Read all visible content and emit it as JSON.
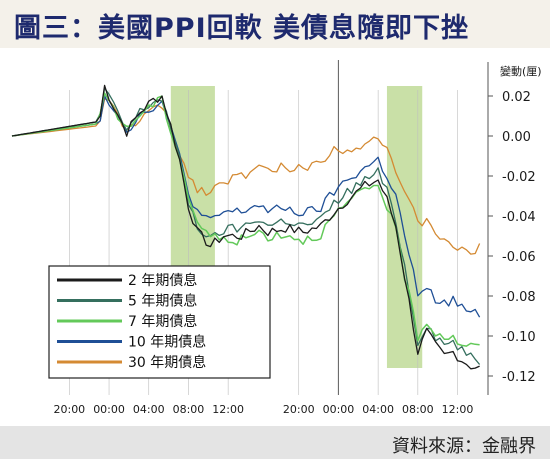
{
  "title": "圖三：美國PPI回軟  美債息隨即下挫",
  "source": "資料來源：金融界",
  "chart_data": {
    "type": "line",
    "ylabel": "變動(厘)",
    "ylim": [
      -0.125,
      0.03
    ],
    "y_ticks": [
      0.02,
      0.0,
      -0.02,
      -0.04,
      -0.06,
      -0.08,
      -0.1,
      -0.12
    ],
    "y_tick_labels": [
      "0.02",
      "0.00",
      "-0.02",
      "-0.04",
      "-0.06",
      "-0.08",
      "-0.10",
      "-0.12"
    ],
    "x_ticks": [
      {
        "label": "20:00",
        "i": 13
      },
      {
        "label": "00:00",
        "i": 22
      },
      {
        "label": "04:00",
        "i": 31
      },
      {
        "label": "08:00",
        "i": 40
      },
      {
        "label": "12:00",
        "i": 49
      },
      {
        "label": "20:00",
        "i": 65
      },
      {
        "label": "00:00",
        "i": 74
      },
      {
        "label": "04:00",
        "i": 83
      },
      {
        "label": "08:00",
        "i": 92
      },
      {
        "label": "12:00",
        "i": 101
      }
    ],
    "x_count": 108,
    "session_divider": 74,
    "highlights": [
      [
        36,
        46
      ],
      [
        85,
        93
      ]
    ],
    "highlight_color": "#b7d68a",
    "series": [
      {
        "name": "2 年期債息",
        "color": "#1b1b1b",
        "width": 1.3,
        "knots": [
          [
            0,
            0
          ],
          [
            19,
            0.007
          ],
          [
            20,
            0.01
          ],
          [
            21,
            0.025
          ],
          [
            23,
            0.015
          ],
          [
            26,
            0.002
          ],
          [
            29,
            0.012
          ],
          [
            32,
            0.018
          ],
          [
            34,
            0.02
          ],
          [
            36,
            0.005
          ],
          [
            38,
            -0.012
          ],
          [
            40,
            -0.035
          ],
          [
            42,
            -0.048
          ],
          [
            45,
            -0.055
          ],
          [
            48,
            -0.05
          ],
          [
            52,
            -0.05
          ],
          [
            56,
            -0.045
          ],
          [
            58,
            -0.048
          ],
          [
            62,
            -0.046
          ],
          [
            66,
            -0.048
          ],
          [
            70,
            -0.045
          ],
          [
            73,
            -0.038
          ],
          [
            76,
            -0.032
          ],
          [
            80,
            -0.025
          ],
          [
            83,
            -0.022
          ],
          [
            85,
            -0.032
          ],
          [
            87,
            -0.045
          ],
          [
            89,
            -0.07
          ],
          [
            91,
            -0.095
          ],
          [
            92,
            -0.108
          ],
          [
            94,
            -0.098
          ],
          [
            96,
            -0.105
          ],
          [
            98,
            -0.11
          ],
          [
            100,
            -0.108
          ],
          [
            102,
            -0.112
          ],
          [
            104,
            -0.115
          ],
          [
            106,
            -0.116
          ]
        ]
      },
      {
        "name": "5 年期債息",
        "color": "#356f5e",
        "width": 1.3,
        "knots": [
          [
            0,
            0
          ],
          [
            19,
            0.007
          ],
          [
            20,
            0.01
          ],
          [
            21,
            0.024
          ],
          [
            23,
            0.015
          ],
          [
            26,
            0.003
          ],
          [
            29,
            0.012
          ],
          [
            32,
            0.017
          ],
          [
            34,
            0.019
          ],
          [
            36,
            0.004
          ],
          [
            38,
            -0.012
          ],
          [
            40,
            -0.033
          ],
          [
            42,
            -0.045
          ],
          [
            45,
            -0.052
          ],
          [
            48,
            -0.047
          ],
          [
            52,
            -0.046
          ],
          [
            56,
            -0.041
          ],
          [
            58,
            -0.045
          ],
          [
            62,
            -0.042
          ],
          [
            66,
            -0.045
          ],
          [
            70,
            -0.042
          ],
          [
            73,
            -0.034
          ],
          [
            76,
            -0.028
          ],
          [
            80,
            -0.022
          ],
          [
            83,
            -0.018
          ],
          [
            85,
            -0.028
          ],
          [
            87,
            -0.042
          ],
          [
            89,
            -0.065
          ],
          [
            91,
            -0.09
          ],
          [
            92,
            -0.103
          ],
          [
            94,
            -0.094
          ],
          [
            96,
            -0.1
          ],
          [
            98,
            -0.104
          ],
          [
            100,
            -0.103
          ],
          [
            102,
            -0.107
          ],
          [
            104,
            -0.111
          ],
          [
            106,
            -0.113
          ]
        ]
      },
      {
        "name": "7 年期債息",
        "color": "#63c95a",
        "width": 1.5,
        "knots": [
          [
            0,
            0
          ],
          [
            19,
            0.006
          ],
          [
            20,
            0.009
          ],
          [
            21,
            0.022
          ],
          [
            23,
            0.014
          ],
          [
            26,
            0.003
          ],
          [
            29,
            0.011
          ],
          [
            32,
            0.016
          ],
          [
            34,
            0.018
          ],
          [
            36,
            0.003
          ],
          [
            38,
            -0.011
          ],
          [
            40,
            -0.03
          ],
          [
            42,
            -0.043
          ],
          [
            45,
            -0.05
          ],
          [
            48,
            -0.052
          ],
          [
            52,
            -0.052
          ],
          [
            56,
            -0.048
          ],
          [
            58,
            -0.05
          ],
          [
            62,
            -0.049
          ],
          [
            66,
            -0.052
          ],
          [
            70,
            -0.049
          ],
          [
            73,
            -0.04
          ],
          [
            76,
            -0.034
          ],
          [
            80,
            -0.027
          ],
          [
            83,
            -0.024
          ],
          [
            85,
            -0.035
          ],
          [
            87,
            -0.048
          ],
          [
            89,
            -0.07
          ],
          [
            91,
            -0.088
          ],
          [
            92,
            -0.1
          ],
          [
            94,
            -0.093
          ],
          [
            96,
            -0.098
          ],
          [
            98,
            -0.1
          ],
          [
            100,
            -0.101
          ],
          [
            102,
            -0.104
          ],
          [
            104,
            -0.105
          ],
          [
            106,
            -0.106
          ]
        ]
      },
      {
        "name": "10 年期債息",
        "color": "#1f4f96",
        "width": 1.3,
        "knots": [
          [
            0,
            0
          ],
          [
            19,
            0.006
          ],
          [
            20,
            0.009
          ],
          [
            21,
            0.021
          ],
          [
            23,
            0.014
          ],
          [
            26,
            0.003
          ],
          [
            29,
            0.01
          ],
          [
            32,
            0.015
          ],
          [
            34,
            0.017
          ],
          [
            36,
            0.003
          ],
          [
            38,
            -0.01
          ],
          [
            40,
            -0.028
          ],
          [
            42,
            -0.038
          ],
          [
            45,
            -0.043
          ],
          [
            48,
            -0.038
          ],
          [
            52,
            -0.038
          ],
          [
            56,
            -0.034
          ],
          [
            58,
            -0.038
          ],
          [
            62,
            -0.036
          ],
          [
            66,
            -0.039
          ],
          [
            70,
            -0.036
          ],
          [
            73,
            -0.028
          ],
          [
            76,
            -0.022
          ],
          [
            80,
            -0.016
          ],
          [
            83,
            -0.012
          ],
          [
            85,
            -0.02
          ],
          [
            87,
            -0.03
          ],
          [
            89,
            -0.05
          ],
          [
            91,
            -0.068
          ],
          [
            92,
            -0.082
          ],
          [
            94,
            -0.076
          ],
          [
            96,
            -0.082
          ],
          [
            98,
            -0.084
          ],
          [
            100,
            -0.082
          ],
          [
            102,
            -0.086
          ],
          [
            104,
            -0.088
          ],
          [
            106,
            -0.09
          ]
        ]
      },
      {
        "name": "30 年期債息",
        "color": "#d48a33",
        "width": 1.3,
        "knots": [
          [
            0,
            0
          ],
          [
            19,
            0.005
          ],
          [
            20,
            0.008
          ],
          [
            21,
            0.02
          ],
          [
            23,
            0.013
          ],
          [
            26,
            0.002
          ],
          [
            29,
            0.009
          ],
          [
            32,
            0.013
          ],
          [
            34,
            0.015
          ],
          [
            36,
            0.003
          ],
          [
            38,
            -0.008
          ],
          [
            40,
            -0.02
          ],
          [
            42,
            -0.026
          ],
          [
            45,
            -0.028
          ],
          [
            48,
            -0.022
          ],
          [
            52,
            -0.02
          ],
          [
            56,
            -0.016
          ],
          [
            58,
            -0.018
          ],
          [
            62,
            -0.015
          ],
          [
            66,
            -0.017
          ],
          [
            70,
            -0.012
          ],
          [
            73,
            -0.007
          ],
          [
            76,
            -0.006
          ],
          [
            80,
            -0.004
          ],
          [
            83,
            0.0
          ],
          [
            85,
            -0.005
          ],
          [
            87,
            -0.018
          ],
          [
            89,
            -0.03
          ],
          [
            91,
            -0.038
          ],
          [
            92,
            -0.044
          ],
          [
            94,
            -0.042
          ],
          [
            96,
            -0.048
          ],
          [
            98,
            -0.052
          ],
          [
            100,
            -0.058
          ],
          [
            102,
            -0.055
          ],
          [
            104,
            -0.058
          ],
          [
            106,
            -0.056
          ]
        ]
      }
    ]
  }
}
